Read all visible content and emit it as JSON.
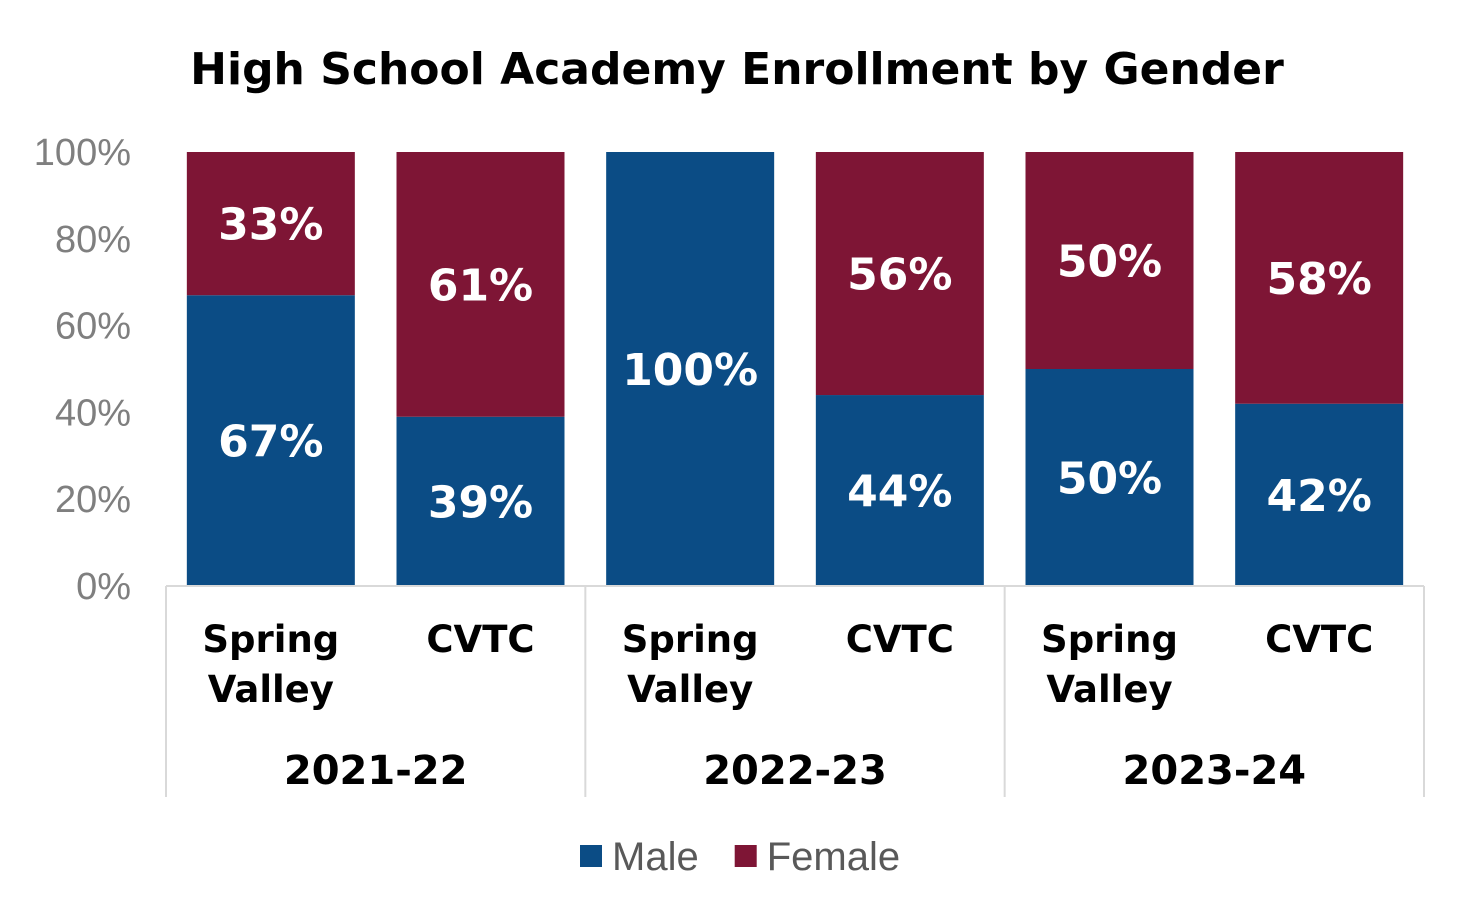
{
  "chart_data": {
    "type": "bar",
    "stacked": true,
    "title": "High School Academy Enrollment by Gender",
    "xlabel": "",
    "ylabel": "",
    "ylim": [
      0,
      100
    ],
    "y_ticks": [
      "0%",
      "20%",
      "40%",
      "60%",
      "80%",
      "100%"
    ],
    "groups": [
      "2021-22",
      "2022-23",
      "2023-24"
    ],
    "categories": [
      {
        "name": "Spring Valley",
        "lines": [
          "Spring",
          "Valley"
        ],
        "group": "2021-22"
      },
      {
        "name": "CVTC",
        "lines": [
          "CVTC"
        ],
        "group": "2021-22"
      },
      {
        "name": "Spring Valley",
        "lines": [
          "Spring",
          "Valley"
        ],
        "group": "2022-23"
      },
      {
        "name": "CVTC",
        "lines": [
          "CVTC"
        ],
        "group": "2022-23"
      },
      {
        "name": "Spring Valley",
        "lines": [
          "Spring",
          "Valley"
        ],
        "group": "2023-24"
      },
      {
        "name": "CVTC",
        "lines": [
          "CVTC"
        ],
        "group": "2023-24"
      }
    ],
    "series": [
      {
        "name": "Male",
        "color": "#0b4c85",
        "values": [
          67,
          39,
          100,
          44,
          50,
          42
        ],
        "labels": [
          "67%",
          "39%",
          "100%",
          "44%",
          "50%",
          "42%"
        ]
      },
      {
        "name": "Female",
        "color": "#7e1535",
        "values": [
          33,
          61,
          0,
          56,
          50,
          58
        ],
        "labels": [
          "33%",
          "61%",
          "",
          "56%",
          "50%",
          "58%"
        ]
      }
    ],
    "legend_position": "bottom"
  }
}
